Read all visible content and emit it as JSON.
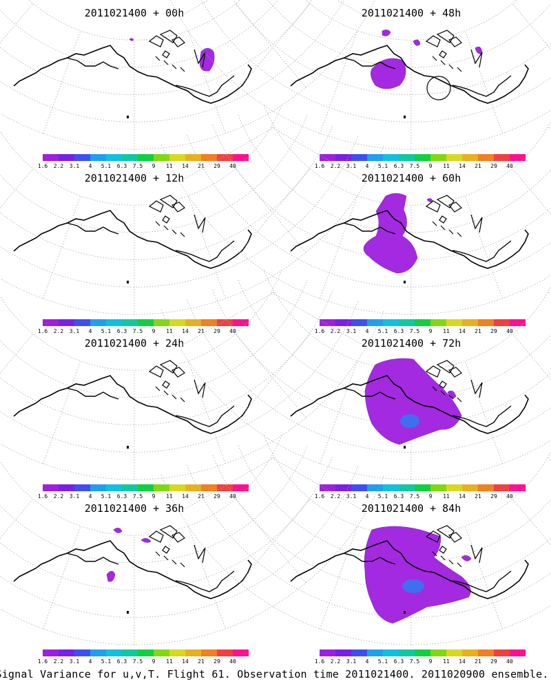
{
  "panels": [
    {
      "title": "2011021400 + 00h"
    },
    {
      "title": "2011021400 + 48h"
    },
    {
      "title": "2011021400 + 12h"
    },
    {
      "title": "2011021400 + 60h"
    },
    {
      "title": "2011021400 + 24h"
    },
    {
      "title": "2011021400 + 72h"
    },
    {
      "title": "2011021400 + 36h"
    },
    {
      "title": "2011021400 + 84h"
    }
  ],
  "colorbar": {
    "labels": [
      "1.6",
      "2.2",
      "3.1",
      "4",
      "5.1",
      "6.3",
      "7.5",
      "9",
      "11",
      "14",
      "21",
      "29",
      "40"
    ],
    "colors": [
      "#9f1fdf",
      "#7a1fe8",
      "#3f4fef",
      "#1f9fef",
      "#10c0e0",
      "#10c8a0",
      "#10d040",
      "#80d810",
      "#d8d820",
      "#e8b020",
      "#f08020",
      "#f04040",
      "#ff1090"
    ]
  },
  "caption": "Signal Variance for u,v,T. Flight 61. Observation time 2011021400. 2011020900 ensemble."
}
